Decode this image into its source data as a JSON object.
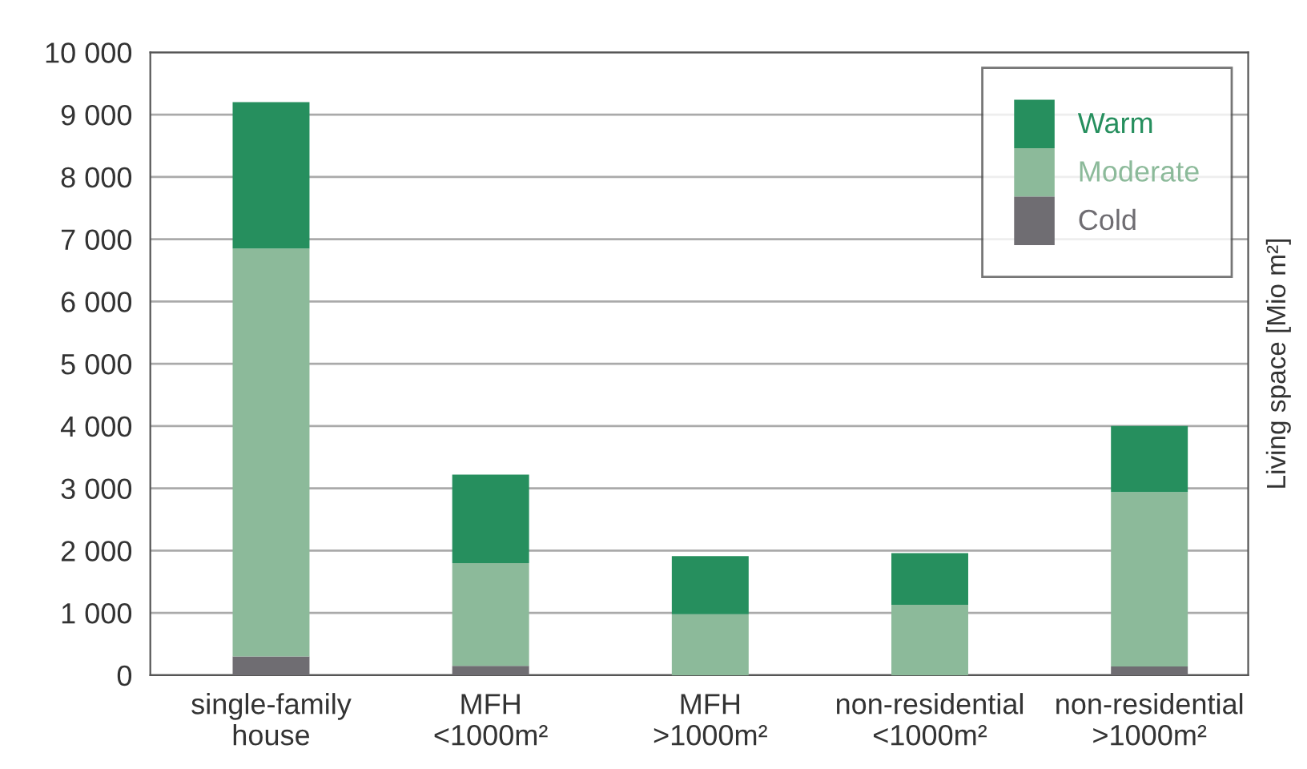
{
  "chart_data": {
    "type": "bar",
    "stacked": true,
    "ylabel": "Living space [Mio m²]",
    "categories": [
      "single-family\nhouse",
      "MFH\n<1000m²",
      "MFH\n>1000m²",
      "non-residential\n<1000m²",
      "non-residential\n>1000m²"
    ],
    "series": [
      {
        "name": "Cold",
        "color": "#6f6d72",
        "values": [
          300,
          150,
          null,
          null,
          140
        ]
      },
      {
        "name": "Moderate",
        "color": "#8cba9a",
        "values": [
          6550,
          1650,
          980,
          1130,
          2800
        ]
      },
      {
        "name": "Warm",
        "color": "#268f5e",
        "values": [
          2350,
          1420,
          930,
          830,
          1060
        ]
      }
    ],
    "ylim": [
      0,
      10000
    ],
    "yticks": [
      {
        "value": 0,
        "label": "0"
      },
      {
        "value": 1000,
        "label": "1 000"
      },
      {
        "value": 2000,
        "label": "2 000"
      },
      {
        "value": 3000,
        "label": "3 000"
      },
      {
        "value": 4000,
        "label": "4 000"
      },
      {
        "value": 5000,
        "label": "5 000"
      },
      {
        "value": 6000,
        "label": "6 000"
      },
      {
        "value": 7000,
        "label": "7 000"
      },
      {
        "value": 8000,
        "label": "8 000"
      },
      {
        "value": 9000,
        "label": "9 000"
      },
      {
        "value": 10000,
        "label": "10 000"
      }
    ],
    "grid": "y",
    "legend": "top right"
  }
}
